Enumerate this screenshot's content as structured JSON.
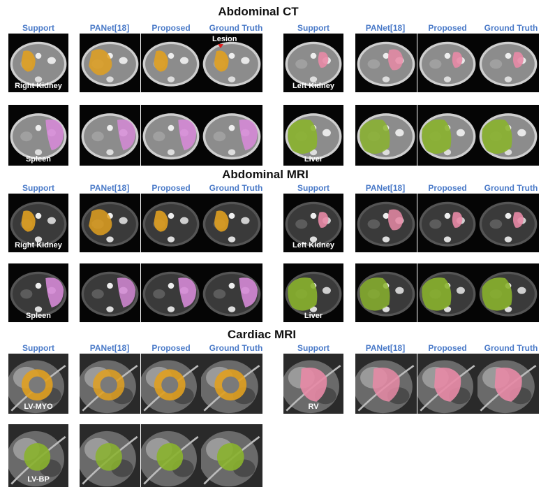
{
  "sections": [
    {
      "key": "ct",
      "title": "Abdominal CT"
    },
    {
      "key": "mri",
      "title": "Abdominal MRI"
    },
    {
      "key": "cardiac",
      "title": "Cardiac MRI"
    }
  ],
  "column_labels": {
    "support": "Support",
    "panet": "PANet[18]",
    "proposed": "Proposed",
    "ground_truth": "Ground Truth"
  },
  "annotations": {
    "lesion": "Lesion"
  },
  "rows": [
    {
      "section": "ct",
      "organs": [
        "Right Kidney",
        "Left Kidney"
      ]
    },
    {
      "section": "ct",
      "organs": [
        "Spleen",
        "Liver"
      ]
    },
    {
      "section": "mri",
      "organs": [
        "Right Kidney",
        "Left Kidney"
      ]
    },
    {
      "section": "mri",
      "organs": [
        "Spleen",
        "Liver"
      ]
    },
    {
      "section": "cardiac",
      "organs": [
        "LV-MYO",
        "RV"
      ]
    },
    {
      "section": "cardiac",
      "organs": [
        "LV-BP"
      ]
    }
  ],
  "colors": {
    "kidney_right": "#e0a020",
    "kidney_left": "#e88aa6",
    "spleen": "#d58ad6",
    "liver": "#8ab32e",
    "lv_myo": "#e0a020",
    "rv": "#e88aa6",
    "lv_bp": "#8ab32e",
    "lesion_marker": "#e02020",
    "column_label": "#4a7ac8"
  }
}
